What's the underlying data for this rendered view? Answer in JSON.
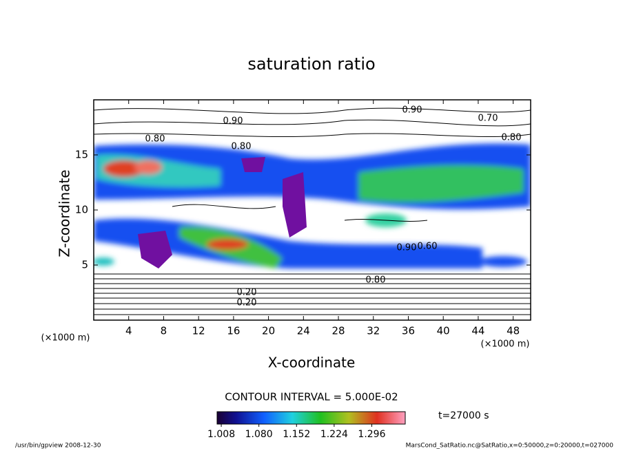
{
  "chart_data": {
    "type": "contour",
    "title": "saturation ratio",
    "x_label": "X-coordinate",
    "y_label": "Z-coordinate",
    "x_unit": "(×1000 m)",
    "xlim": [
      0,
      50
    ],
    "xticks": [
      4,
      8,
      12,
      16,
      20,
      24,
      28,
      32,
      36,
      40,
      44,
      48
    ],
    "ylim": [
      0,
      20
    ],
    "yticks": [
      5,
      10,
      15
    ],
    "contour_labels": [
      "0.90",
      "0.80",
      "0.90",
      "0.80",
      "0.70",
      "0.80",
      "0.90",
      "0.80",
      "0.20",
      "0.20",
      "0.60"
    ],
    "contour_interval": "CONTOUR INTERVAL = 5.000E-02",
    "time_label": "t=27000 s",
    "clim": [
      1.0,
      1.36
    ],
    "cticks": [
      1.008,
      {
        "value": 1.08,
        "label": "1.080"
      },
      1.152,
      1.224,
      1.296
    ],
    "footer_left": "/usr/bin/gpview  2008-12-30",
    "footer_right": "MarsCond_SatRatio.nc@SatRatio,x=0:50000,z=0:20000,t=027000"
  }
}
